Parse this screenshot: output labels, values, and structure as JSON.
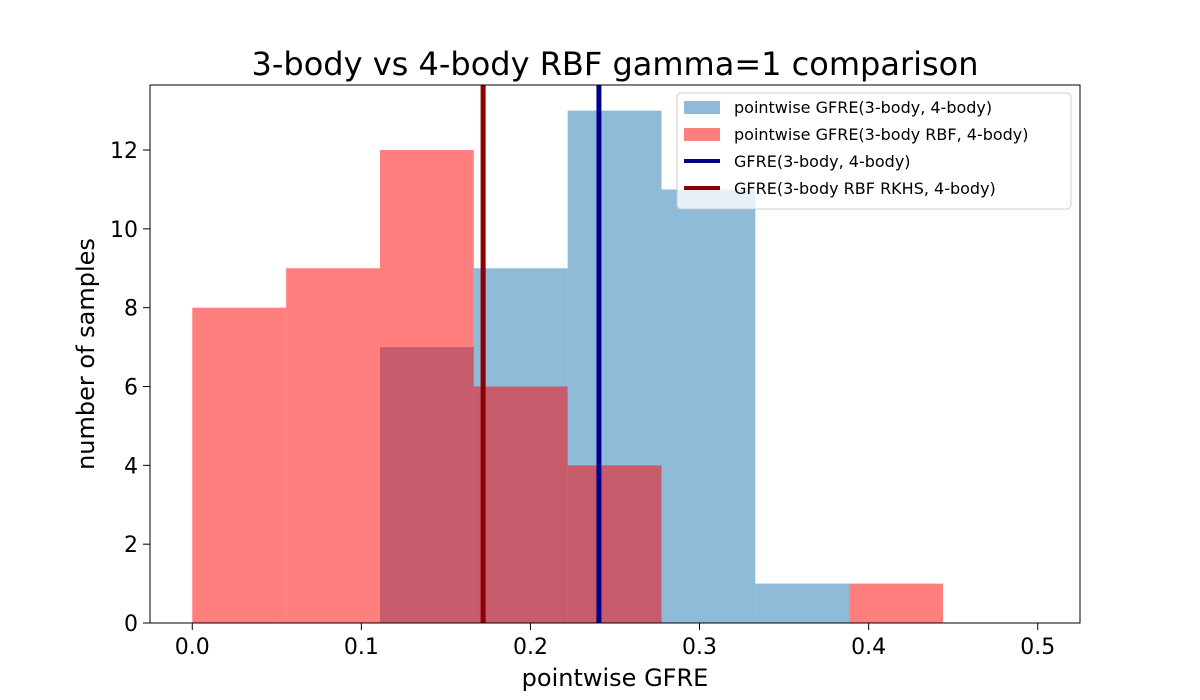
{
  "chart_data": {
    "type": "bar",
    "title": "3-body vs 4-body RBF gamma=1 comparison",
    "xlabel": "pointwise GFRE",
    "ylabel": "number of samples",
    "xlim": [
      -0.025,
      0.525
    ],
    "ylim": [
      0,
      13.65
    ],
    "xticks": [
      0.0,
      0.1,
      0.2,
      0.3,
      0.4,
      0.5
    ],
    "xtick_labels": [
      "0.0",
      "0.1",
      "0.2",
      "0.3",
      "0.4",
      "0.5"
    ],
    "yticks": [
      0,
      2,
      4,
      6,
      8,
      10,
      12
    ],
    "ytick_labels": [
      "0",
      "2",
      "4",
      "6",
      "8",
      "10",
      "12"
    ],
    "grid": false,
    "legend_position": "upper right",
    "series": [
      {
        "name": "pointwise GFRE(3-body, 4-body)",
        "kind": "histogram",
        "color": "#1f77b4",
        "alpha": 0.5,
        "bin_edges": [
          0.111,
          0.1665,
          0.222,
          0.2775,
          0.333,
          0.3885,
          0.444
        ],
        "counts": [
          7,
          9,
          13,
          11,
          1,
          0
        ]
      },
      {
        "name": "pointwise GFRE(3-body RBF, 4-body)",
        "kind": "histogram",
        "color": "#ff0000",
        "alpha": 0.5,
        "bin_edges": [
          0.0,
          0.0555,
          0.111,
          0.1665,
          0.222,
          0.2775,
          0.333,
          0.3885,
          0.444
        ],
        "counts": [
          8,
          9,
          12,
          6,
          4,
          0,
          0,
          1
        ]
      },
      {
        "name": "GFRE(3-body, 4-body)",
        "kind": "vline",
        "color": "#00008b",
        "x": 0.2405
      },
      {
        "name": "GFRE(3-body RBF RKHS, 4-body)",
        "kind": "vline",
        "color": "#8b0000",
        "x": 0.172
      }
    ]
  }
}
